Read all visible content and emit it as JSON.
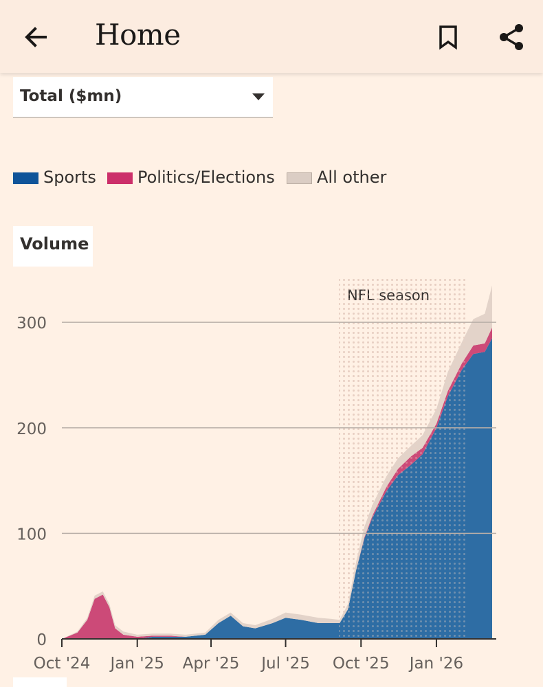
{
  "header": {
    "title": "Home",
    "back_icon": "arrow-left-icon",
    "bookmark_icon": "bookmark-icon",
    "share_icon": "share-icon"
  },
  "metric_select": {
    "value": "Total ($mn)",
    "caret_icon": "caret-down-icon"
  },
  "legend": [
    {
      "label": "Sports",
      "color": "#0f5499"
    },
    {
      "label": "Politics/Elections",
      "color": "#cc2f6a"
    },
    {
      "label": "All other",
      "color": "#dbcdc4"
    }
  ],
  "chart_title": "Volume",
  "chart_data": {
    "type": "area",
    "stacked": true,
    "ylabel": "Volume",
    "ylim": [
      0,
      345
    ],
    "yticks": [
      0,
      100,
      200,
      300
    ],
    "grid": true,
    "x_range": [
      "2024-10-01",
      "2026-03-15"
    ],
    "xticks": [
      {
        "date": "2024-10-01",
        "label": "Oct '24"
      },
      {
        "date": "2025-01-01",
        "label": "Jan '25"
      },
      {
        "date": "2025-04-01",
        "label": "Apr '25"
      },
      {
        "date": "2025-07-01",
        "label": "Jul '25"
      },
      {
        "date": "2025-10-01",
        "label": "Oct '25"
      },
      {
        "date": "2026-01-01",
        "label": "Jan '26"
      }
    ],
    "annotations": [
      {
        "label": "NFL season",
        "type": "shaded-range",
        "from": "2025-09-04",
        "to": "2026-02-08"
      }
    ],
    "x": [
      "2024-10-01",
      "2024-10-20",
      "2024-11-01",
      "2024-11-10",
      "2024-11-20",
      "2024-11-28",
      "2024-12-05",
      "2024-12-15",
      "2025-01-01",
      "2025-01-20",
      "2025-02-10",
      "2025-03-01",
      "2025-03-25",
      "2025-04-10",
      "2025-04-25",
      "2025-05-10",
      "2025-05-25",
      "2025-06-15",
      "2025-07-01",
      "2025-07-20",
      "2025-08-10",
      "2025-08-25",
      "2025-09-05",
      "2025-09-15",
      "2025-09-25",
      "2025-10-05",
      "2025-10-15",
      "2025-11-01",
      "2025-11-15",
      "2025-12-01",
      "2025-12-15",
      "2026-01-01",
      "2026-01-15",
      "2026-02-01",
      "2026-02-15",
      "2026-03-01",
      "2026-03-10"
    ],
    "series": [
      {
        "name": "Sports",
        "color": "#2e6da4",
        "values": [
          0,
          0,
          0,
          0,
          0,
          0,
          0,
          0,
          0,
          2,
          2,
          2,
          4,
          15,
          22,
          12,
          10,
          15,
          20,
          18,
          15,
          15,
          15,
          28,
          65,
          95,
          115,
          140,
          155,
          165,
          175,
          200,
          230,
          255,
          270,
          272,
          285
        ]
      },
      {
        "name": "Politics/Elections",
        "color": "#cc4a78",
        "values": [
          0,
          6,
          18,
          38,
          42,
          30,
          10,
          4,
          2,
          1,
          1,
          0,
          0,
          0,
          0,
          0,
          0,
          0,
          0,
          0,
          0,
          0,
          0,
          0,
          0,
          1,
          2,
          4,
          6,
          8,
          6,
          4,
          5,
          6,
          8,
          8,
          10
        ]
      },
      {
        "name": "All other",
        "color": "#e3d3c9",
        "values": [
          0,
          1,
          2,
          3,
          3,
          3,
          3,
          3,
          2,
          2,
          2,
          2,
          2,
          3,
          3,
          3,
          3,
          4,
          5,
          5,
          5,
          4,
          3,
          5,
          8,
          10,
          10,
          10,
          10,
          10,
          12,
          14,
          18,
          20,
          25,
          28,
          40
        ]
      }
    ]
  }
}
